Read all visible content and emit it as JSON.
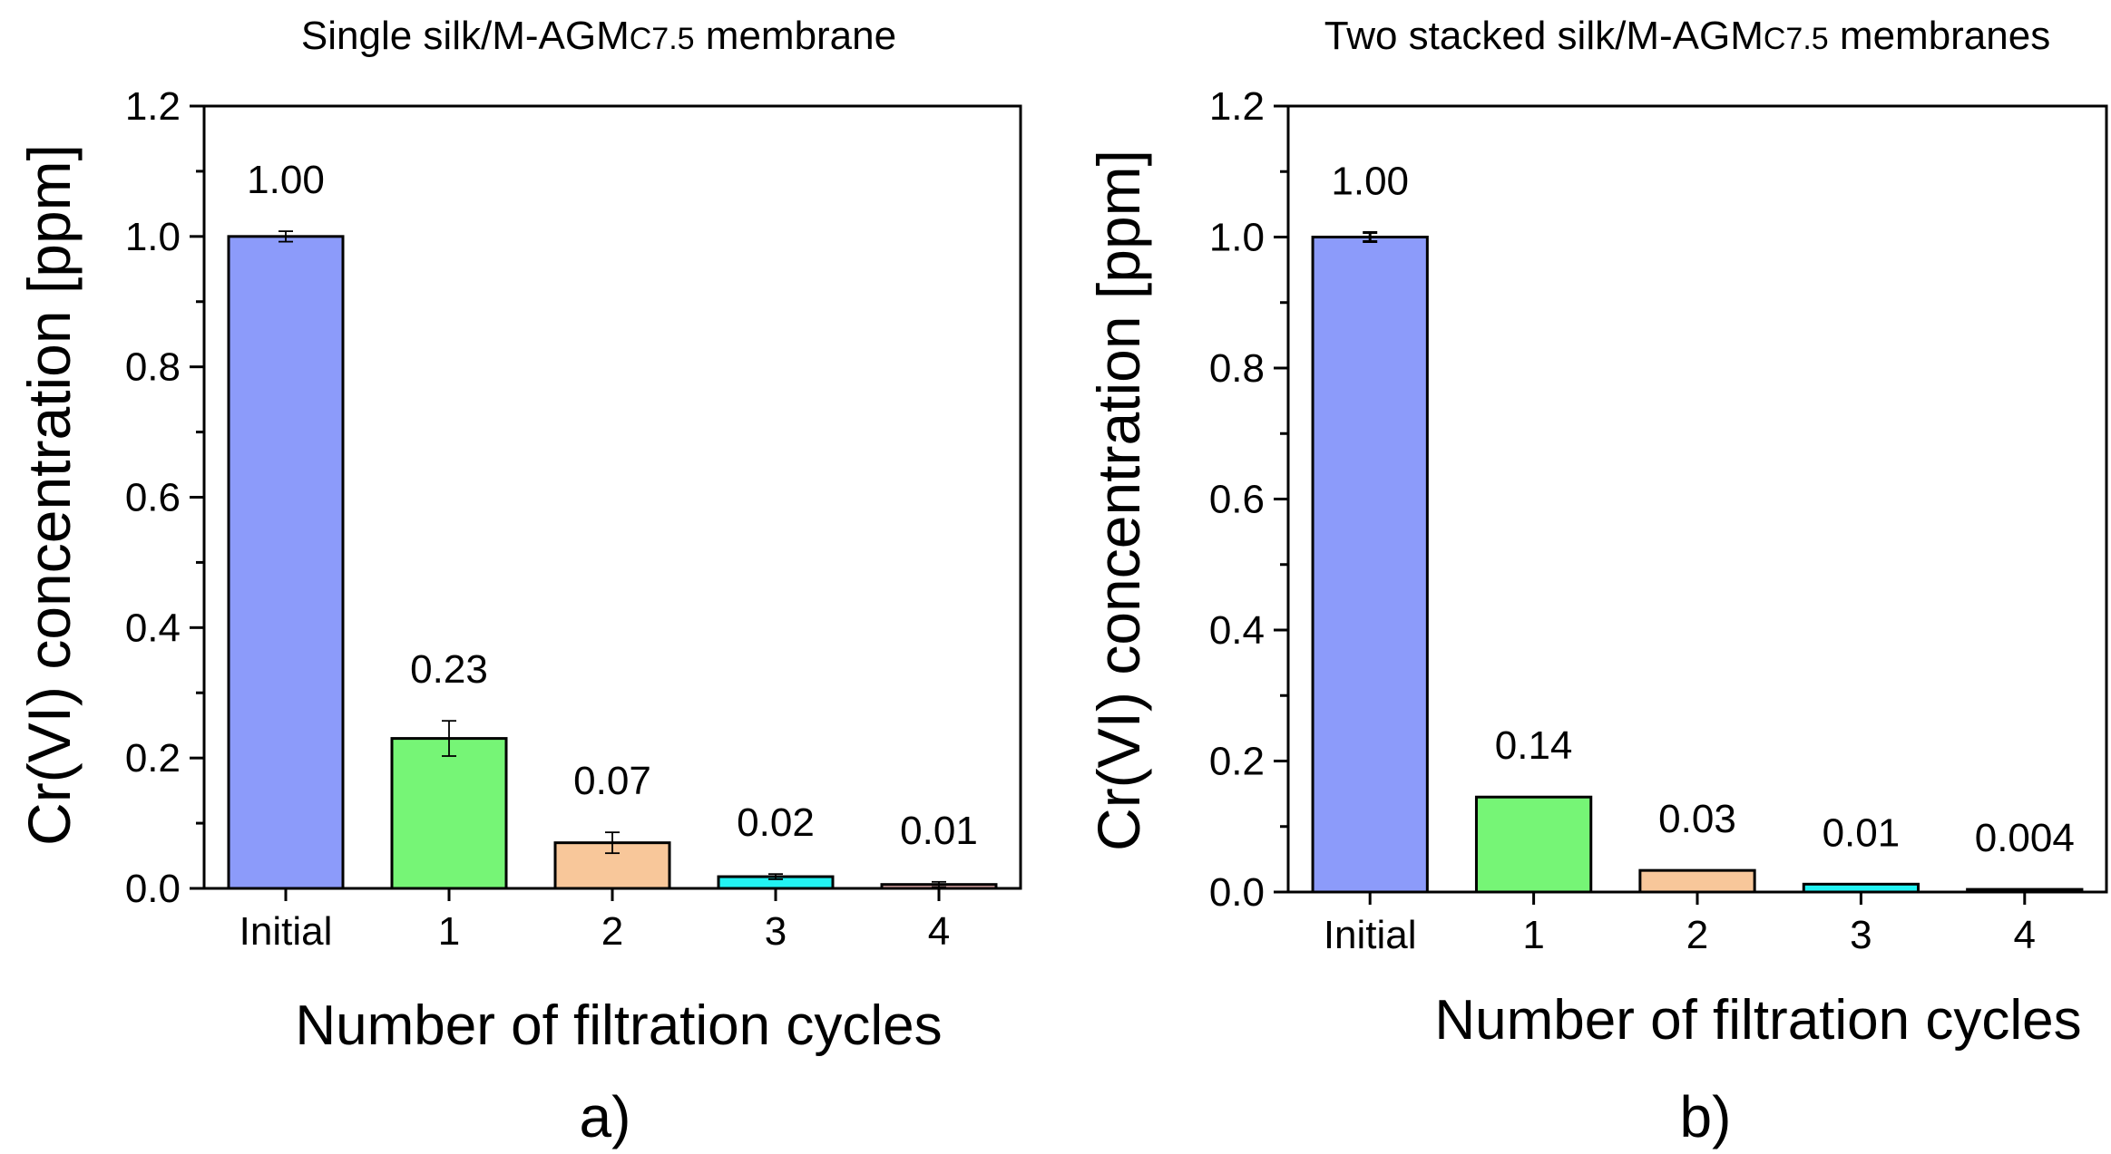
{
  "chart_data": [
    {
      "type": "bar",
      "panel_label": "a)",
      "title": "Single silk/M-AGM",
      "title_sub": "C7.5",
      "title_suffix": " membrane",
      "xlabel": "Number of filtration cycles",
      "ylabel": "Cr(VI) concentration [ppm]",
      "ylim": [
        0,
        1.2
      ],
      "yticks": [
        "0.0",
        "0.2",
        "0.4",
        "0.6",
        "0.8",
        "1.0",
        "1.2"
      ],
      "categories": [
        "Initial",
        "1",
        "2",
        "3",
        "4"
      ],
      "values": [
        1.0,
        0.23,
        0.07,
        0.018,
        0.006
      ],
      "errors": [
        0.008,
        0.027,
        0.016,
        0.004,
        0.004
      ],
      "value_labels": [
        "1.00",
        "0.23",
        "0.07",
        "0.02",
        "0.01"
      ],
      "colors": [
        "#8c9bfa",
        "#76f576",
        "#f8c79a",
        "#22f2f2",
        "#f0b6b6"
      ]
    },
    {
      "type": "bar",
      "panel_label": "b)",
      "title": "Two stacked silk/M-AGM",
      "title_sub": "C7.5",
      "title_suffix": " membranes",
      "xlabel": "Number of filtration cycles",
      "ylabel": "Cr(VI) concentration [ppm]",
      "ylim": [
        0,
        1.2
      ],
      "yticks": [
        "0.0",
        "0.2",
        "0.4",
        "0.6",
        "0.8",
        "1.0",
        "1.2"
      ],
      "categories": [
        "Initial",
        "1",
        "2",
        "3",
        "4"
      ],
      "values": [
        1.0,
        0.145,
        0.033,
        0.012,
        0.004
      ],
      "errors": [
        0.007,
        0.0,
        0.0,
        0.0,
        0.0
      ],
      "value_labels": [
        "1.00",
        "0.14",
        "0.03",
        "0.01",
        "0.004"
      ],
      "colors": [
        "#8c9bfa",
        "#76f576",
        "#f8c79a",
        "#22f2f2",
        "#f0b6b6"
      ]
    }
  ]
}
